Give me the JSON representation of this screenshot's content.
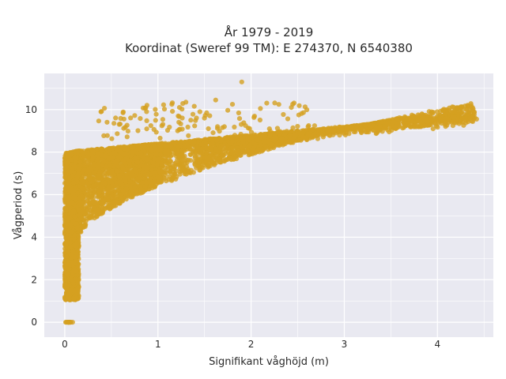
{
  "chart_data": {
    "type": "scatter",
    "title_line1": "År 1979 - 2019",
    "title_line2": "Koordinat (Sweref 99 TM): E 274370, N 6540380",
    "xlabel": "Signifikant våghöjd (m)",
    "ylabel": "Vågperiod (s)",
    "xlim": [
      -0.22,
      4.6
    ],
    "ylim": [
      -0.7,
      11.7
    ],
    "x_ticks": [
      0,
      1,
      2,
      3,
      4
    ],
    "y_ticks": [
      0,
      2,
      4,
      6,
      8,
      10
    ],
    "grid": true,
    "point_color": "#d4a021",
    "background_color": "#e9e9f1",
    "grid_color": "#ffffff",
    "distribution_description": "Dense cloud of points: near x=0 T spans 1-8 s; lower bound rises roughly as 2.8+3.6*sqrt(Hs); upper bound ~8 at Hs=0.1 rising to ~9.6 at Hs=4.4; a column of points at T=0 for Hs 0-0.1; sparse outliers up to T~11.3 near Hs 1.9."
  }
}
